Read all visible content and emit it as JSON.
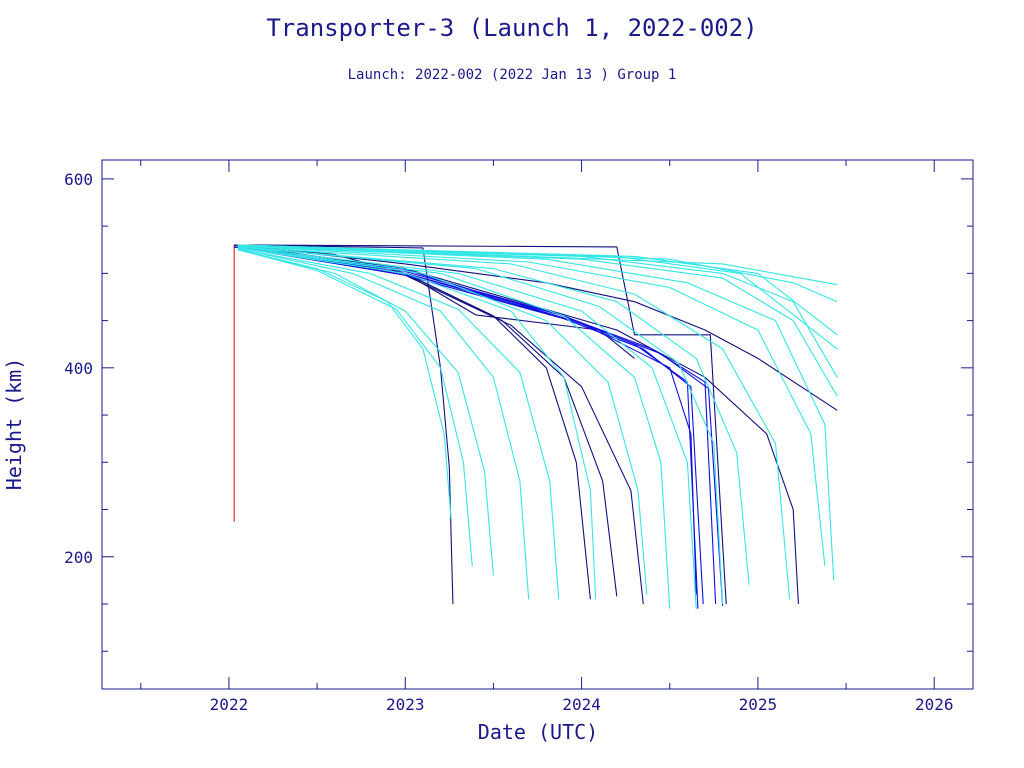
{
  "chart_data": {
    "type": "line",
    "title": "Transporter-3 (Launch 1, 2022-002)",
    "subtitle": "Launch: 2022-002  (2022 Jan 13 )  Group 1",
    "xlabel": "Date (UTC)",
    "ylabel": "Height (km)",
    "xlim": [
      2021.28,
      2026.22
    ],
    "ylim": [
      60,
      620
    ],
    "x_ticks": [
      2022,
      2023,
      2024,
      2025,
      2026
    ],
    "x_tick_labels": [
      "2022",
      "2023",
      "2024",
      "2025",
      "2026"
    ],
    "y_ticks": [
      200,
      400,
      600
    ],
    "y_tick_labels": [
      "200",
      "400",
      "600"
    ],
    "grid": false,
    "colors": {
      "text": "#1a1a8c",
      "axis": "#1a1a8c",
      "cyan": "#33e6e6",
      "navy": "#101080",
      "blue": "#1010e0",
      "red": "#e03030"
    },
    "series": [
      {
        "color": "red",
        "points": [
          [
            2022.03,
            237
          ],
          [
            2022.03,
            530
          ]
        ]
      },
      {
        "color": "navy",
        "points": [
          [
            2022.03,
            530
          ],
          [
            2024.2,
            528
          ],
          [
            2024.3,
            435
          ],
          [
            2024.73,
            435
          ],
          [
            2024.82,
            150
          ]
        ]
      },
      {
        "color": "navy",
        "points": [
          [
            2022.03,
            530
          ],
          [
            2023.1,
            527
          ],
          [
            2023.2,
            400
          ],
          [
            2023.25,
            295
          ],
          [
            2023.27,
            150
          ]
        ]
      },
      {
        "color": "navy",
        "points": [
          [
            2022.03,
            530
          ],
          [
            2022.6,
            520
          ],
          [
            2023.0,
            500
          ],
          [
            2023.4,
            456
          ],
          [
            2024.1,
            440
          ],
          [
            2024.3,
            410
          ]
        ]
      },
      {
        "color": "navy",
        "points": [
          [
            2022.03,
            530
          ],
          [
            2023.0,
            510
          ],
          [
            2023.8,
            490
          ],
          [
            2024.3,
            470
          ],
          [
            2024.7,
            440
          ],
          [
            2025.0,
            410
          ],
          [
            2025.45,
            355
          ]
        ]
      },
      {
        "color": "navy",
        "points": [
          [
            2022.03,
            530
          ],
          [
            2023.0,
            505
          ],
          [
            2024.2,
            440
          ],
          [
            2024.7,
            390
          ],
          [
            2025.05,
            330
          ],
          [
            2025.2,
            250
          ],
          [
            2025.23,
            150
          ]
        ]
      },
      {
        "color": "navy",
        "points": [
          [
            2022.03,
            530
          ],
          [
            2023.0,
            500
          ],
          [
            2023.5,
            455
          ],
          [
            2023.8,
            400
          ],
          [
            2023.97,
            300
          ],
          [
            2024.05,
            155
          ]
        ]
      },
      {
        "color": "navy",
        "points": [
          [
            2022.03,
            530
          ],
          [
            2023.0,
            500
          ],
          [
            2023.55,
            450
          ],
          [
            2023.9,
            390
          ],
          [
            2024.12,
            280
          ],
          [
            2024.2,
            158
          ]
        ]
      },
      {
        "color": "navy",
        "points": [
          [
            2022.03,
            530
          ],
          [
            2023.0,
            498
          ],
          [
            2023.6,
            445
          ],
          [
            2024.0,
            380
          ],
          [
            2024.28,
            270
          ],
          [
            2024.35,
            150
          ]
        ]
      },
      {
        "color": "blue",
        "points": [
          [
            2022.03,
            528
          ],
          [
            2023.0,
            500
          ],
          [
            2023.9,
            455
          ],
          [
            2024.3,
            425
          ],
          [
            2024.6,
            385
          ],
          [
            2024.66,
            145
          ]
        ]
      },
      {
        "color": "blue",
        "points": [
          [
            2022.03,
            528
          ],
          [
            2023.0,
            498
          ],
          [
            2023.9,
            452
          ],
          [
            2024.35,
            420
          ],
          [
            2024.62,
            380
          ],
          [
            2024.69,
            150
          ]
        ]
      },
      {
        "color": "blue",
        "points": [
          [
            2022.03,
            528
          ],
          [
            2023.0,
            502
          ],
          [
            2023.85,
            458
          ],
          [
            2024.4,
            420
          ],
          [
            2024.7,
            385
          ],
          [
            2024.76,
            150
          ]
        ]
      },
      {
        "color": "blue",
        "points": [
          [
            2022.03,
            528
          ],
          [
            2023.0,
            500
          ],
          [
            2023.95,
            450
          ],
          [
            2024.45,
            415
          ],
          [
            2024.72,
            378
          ],
          [
            2024.8,
            148
          ]
        ]
      },
      {
        "color": "blue",
        "points": [
          [
            2022.03,
            528
          ],
          [
            2023.0,
            504
          ],
          [
            2024.0,
            447
          ],
          [
            2024.5,
            400
          ],
          [
            2024.62,
            330
          ],
          [
            2024.65,
            160
          ]
        ]
      },
      {
        "color": "cyan",
        "points": [
          [
            2022.05,
            525
          ],
          [
            2022.5,
            505
          ],
          [
            2022.9,
            470
          ],
          [
            2023.1,
            420
          ],
          [
            2023.22,
            330
          ],
          [
            2023.26,
            240
          ]
        ]
      },
      {
        "color": "cyan",
        "points": [
          [
            2022.05,
            525
          ],
          [
            2022.5,
            503
          ],
          [
            2022.95,
            462
          ],
          [
            2023.2,
            400
          ],
          [
            2023.33,
            300
          ],
          [
            2023.38,
            190
          ]
        ]
      },
      {
        "color": "cyan",
        "points": [
          [
            2022.05,
            525
          ],
          [
            2022.6,
            500
          ],
          [
            2023.0,
            460
          ],
          [
            2023.3,
            395
          ],
          [
            2023.45,
            290
          ],
          [
            2023.5,
            180
          ]
        ]
      },
      {
        "color": "cyan",
        "points": [
          [
            2022.05,
            526
          ],
          [
            2022.7,
            500
          ],
          [
            2023.2,
            460
          ],
          [
            2023.5,
            390
          ],
          [
            2023.65,
            280
          ],
          [
            2023.7,
            155
          ]
        ]
      },
      {
        "color": "cyan",
        "points": [
          [
            2022.05,
            526
          ],
          [
            2022.8,
            500
          ],
          [
            2023.3,
            462
          ],
          [
            2023.65,
            395
          ],
          [
            2023.82,
            280
          ],
          [
            2023.87,
            155
          ]
        ]
      },
      {
        "color": "cyan",
        "points": [
          [
            2022.05,
            527
          ],
          [
            2023.0,
            500
          ],
          [
            2023.6,
            460
          ],
          [
            2023.9,
            390
          ],
          [
            2024.05,
            270
          ],
          [
            2024.08,
            155
          ]
        ]
      },
      {
        "color": "cyan",
        "points": [
          [
            2022.05,
            527
          ],
          [
            2023.1,
            500
          ],
          [
            2023.8,
            450
          ],
          [
            2024.15,
            385
          ],
          [
            2024.32,
            270
          ],
          [
            2024.37,
            160
          ]
        ]
      },
      {
        "color": "cyan",
        "points": [
          [
            2022.05,
            527
          ],
          [
            2023.2,
            500
          ],
          [
            2023.9,
            455
          ],
          [
            2024.3,
            390
          ],
          [
            2024.45,
            300
          ],
          [
            2024.5,
            145
          ]
        ]
      },
      {
        "color": "cyan",
        "points": [
          [
            2022.05,
            528
          ],
          [
            2023.3,
            500
          ],
          [
            2024.0,
            460
          ],
          [
            2024.4,
            400
          ],
          [
            2024.6,
            300
          ],
          [
            2024.65,
            145
          ]
        ]
      },
      {
        "color": "cyan",
        "points": [
          [
            2022.05,
            528
          ],
          [
            2023.4,
            505
          ],
          [
            2024.1,
            465
          ],
          [
            2024.55,
            405
          ],
          [
            2024.75,
            320
          ],
          [
            2024.8,
            150
          ]
        ]
      },
      {
        "color": "cyan",
        "points": [
          [
            2022.05,
            528
          ],
          [
            2023.5,
            505
          ],
          [
            2024.2,
            470
          ],
          [
            2024.65,
            410
          ],
          [
            2024.88,
            310
          ],
          [
            2024.95,
            170
          ]
        ]
      },
      {
        "color": "cyan",
        "points": [
          [
            2022.05,
            528
          ],
          [
            2023.6,
            510
          ],
          [
            2024.3,
            478
          ],
          [
            2024.8,
            420
          ],
          [
            2025.1,
            320
          ],
          [
            2025.18,
            155
          ]
        ]
      },
      {
        "color": "cyan",
        "points": [
          [
            2022.05,
            529
          ],
          [
            2023.7,
            512
          ],
          [
            2024.5,
            485
          ],
          [
            2025.0,
            440
          ],
          [
            2025.3,
            330
          ],
          [
            2025.38,
            190
          ]
        ]
      },
      {
        "color": "cyan",
        "points": [
          [
            2022.05,
            529
          ],
          [
            2023.8,
            515
          ],
          [
            2024.6,
            490
          ],
          [
            2025.1,
            450
          ],
          [
            2025.38,
            340
          ],
          [
            2025.43,
            175
          ]
        ]
      },
      {
        "color": "cyan",
        "points": [
          [
            2022.05,
            529
          ],
          [
            2024.0,
            515
          ],
          [
            2024.8,
            495
          ],
          [
            2025.2,
            450
          ],
          [
            2025.45,
            370
          ]
        ]
      },
      {
        "color": "cyan",
        "points": [
          [
            2022.05,
            529
          ],
          [
            2024.0,
            518
          ],
          [
            2024.8,
            500
          ],
          [
            2025.2,
            470
          ],
          [
            2025.45,
            390
          ]
        ]
      },
      {
        "color": "cyan",
        "points": [
          [
            2022.05,
            530
          ],
          [
            2024.2,
            518
          ],
          [
            2024.9,
            500
          ],
          [
            2025.45,
            420
          ]
        ]
      },
      {
        "color": "cyan",
        "points": [
          [
            2022.05,
            530
          ],
          [
            2024.3,
            518
          ],
          [
            2025.0,
            500
          ],
          [
            2025.45,
            435
          ]
        ]
      },
      {
        "color": "cyan",
        "points": [
          [
            2022.05,
            530
          ],
          [
            2024.5,
            515
          ],
          [
            2025.2,
            490
          ],
          [
            2025.45,
            470
          ]
        ]
      },
      {
        "color": "cyan",
        "points": [
          [
            2022.05,
            530
          ],
          [
            2024.8,
            510
          ],
          [
            2025.45,
            488
          ]
        ]
      }
    ]
  }
}
